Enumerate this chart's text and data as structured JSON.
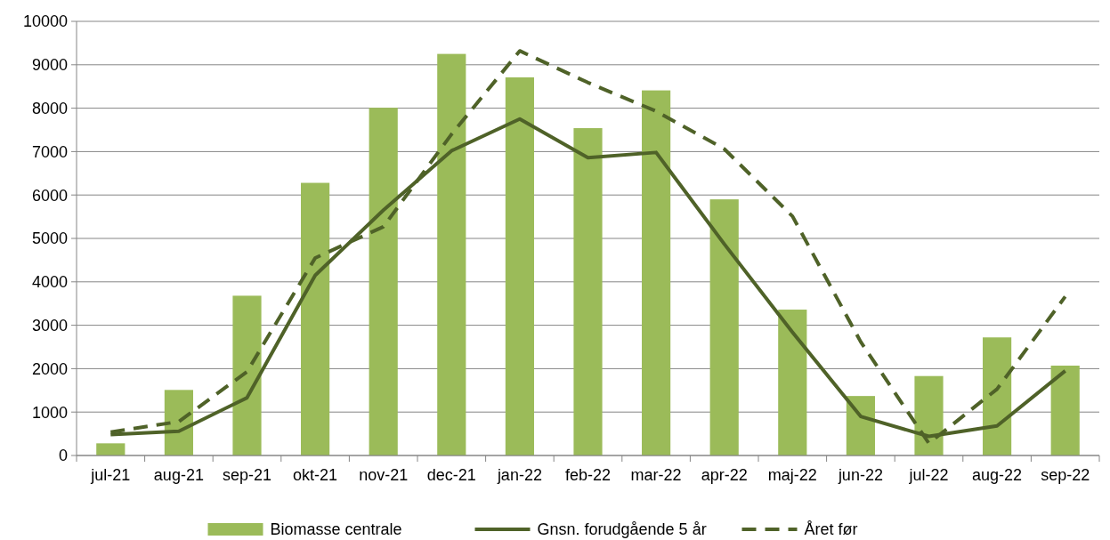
{
  "chart_data": {
    "type": "bar",
    "categories": [
      "jul-21",
      "aug-21",
      "sep-21",
      "okt-21",
      "nov-21",
      "dec-21",
      "jan-22",
      "feb-22",
      "mar-22",
      "apr-22",
      "maj-22",
      "jun-22",
      "jul-22",
      "aug-22",
      "sep-22"
    ],
    "series": [
      {
        "name": "Biomasse centrale",
        "color": "#9bbb59",
        "values": [
          280,
          1510,
          3680,
          6280,
          8010,
          9250,
          8710,
          7540,
          8410,
          5900,
          3360,
          1370,
          1830,
          2720,
          2070
        ]
      },
      {
        "name": "Gnsn. forudgående 5 år",
        "type": "line",
        "color": "#4f6228",
        "line_style": "solid",
        "values": [
          480,
          560,
          1330,
          4150,
          5650,
          7020,
          7750,
          6860,
          6980,
          4870,
          2840,
          900,
          440,
          680,
          1950
        ]
      },
      {
        "name": "Året før",
        "type": "line",
        "color": "#4f6228",
        "line_style": "dashed",
        "values": [
          540,
          780,
          1930,
          4550,
          5270,
          7400,
          9320,
          8590,
          7930,
          7060,
          5510,
          2620,
          280,
          1530,
          3660
        ]
      }
    ],
    "ylim": [
      0,
      10000
    ],
    "yticks": [
      0,
      1000,
      2000,
      3000,
      4000,
      5000,
      6000,
      7000,
      8000,
      9000,
      10000
    ],
    "grid": "y",
    "legend": "bottom",
    "marker": "none"
  }
}
